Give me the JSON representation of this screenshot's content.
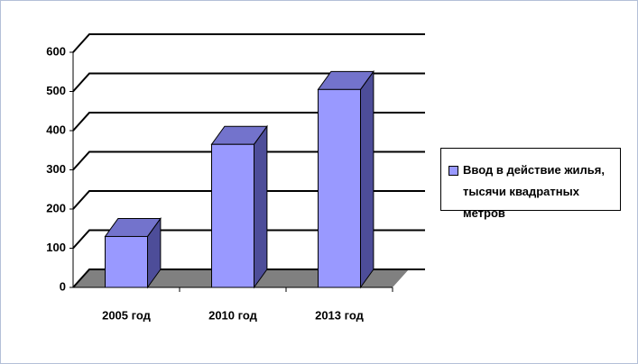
{
  "chart_data": {
    "type": "bar3d",
    "categories": [
      "2005 год",
      "2010 год",
      "2013 год"
    ],
    "series": [
      {
        "name": "Ввод в действие жилья, тысячи квадратных метров",
        "color": "#9999ff",
        "values": [
          130,
          365,
          505
        ]
      }
    ],
    "ylim": [
      0,
      600
    ],
    "yticks": [
      0,
      100,
      200,
      300,
      400,
      500,
      600
    ],
    "grid": true,
    "legend": "right"
  }
}
